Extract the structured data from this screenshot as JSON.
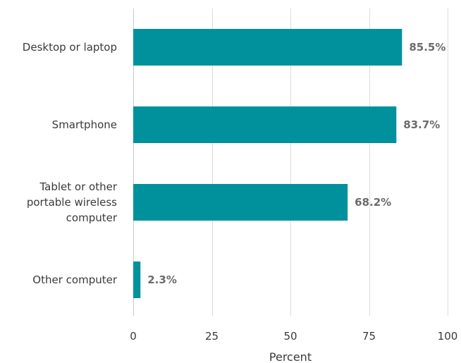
{
  "chart_data": {
    "type": "bar",
    "orientation": "horizontal",
    "categories": [
      [
        "Desktop or laptop"
      ],
      [
        "Smartphone"
      ],
      [
        "Tablet or other",
        "portable wireless",
        "computer"
      ],
      [
        "Other computer"
      ]
    ],
    "values": [
      85.5,
      83.7,
      68.2,
      2.3
    ],
    "value_labels": [
      "85.5%",
      "83.7%",
      "68.2%",
      "2.3%"
    ],
    "xlabel": "Percent",
    "ylabel": "",
    "xlim": [
      0,
      100
    ],
    "xticks": [
      0,
      25,
      50,
      75,
      100
    ],
    "grid": true,
    "bar_color": "#00919c"
  }
}
